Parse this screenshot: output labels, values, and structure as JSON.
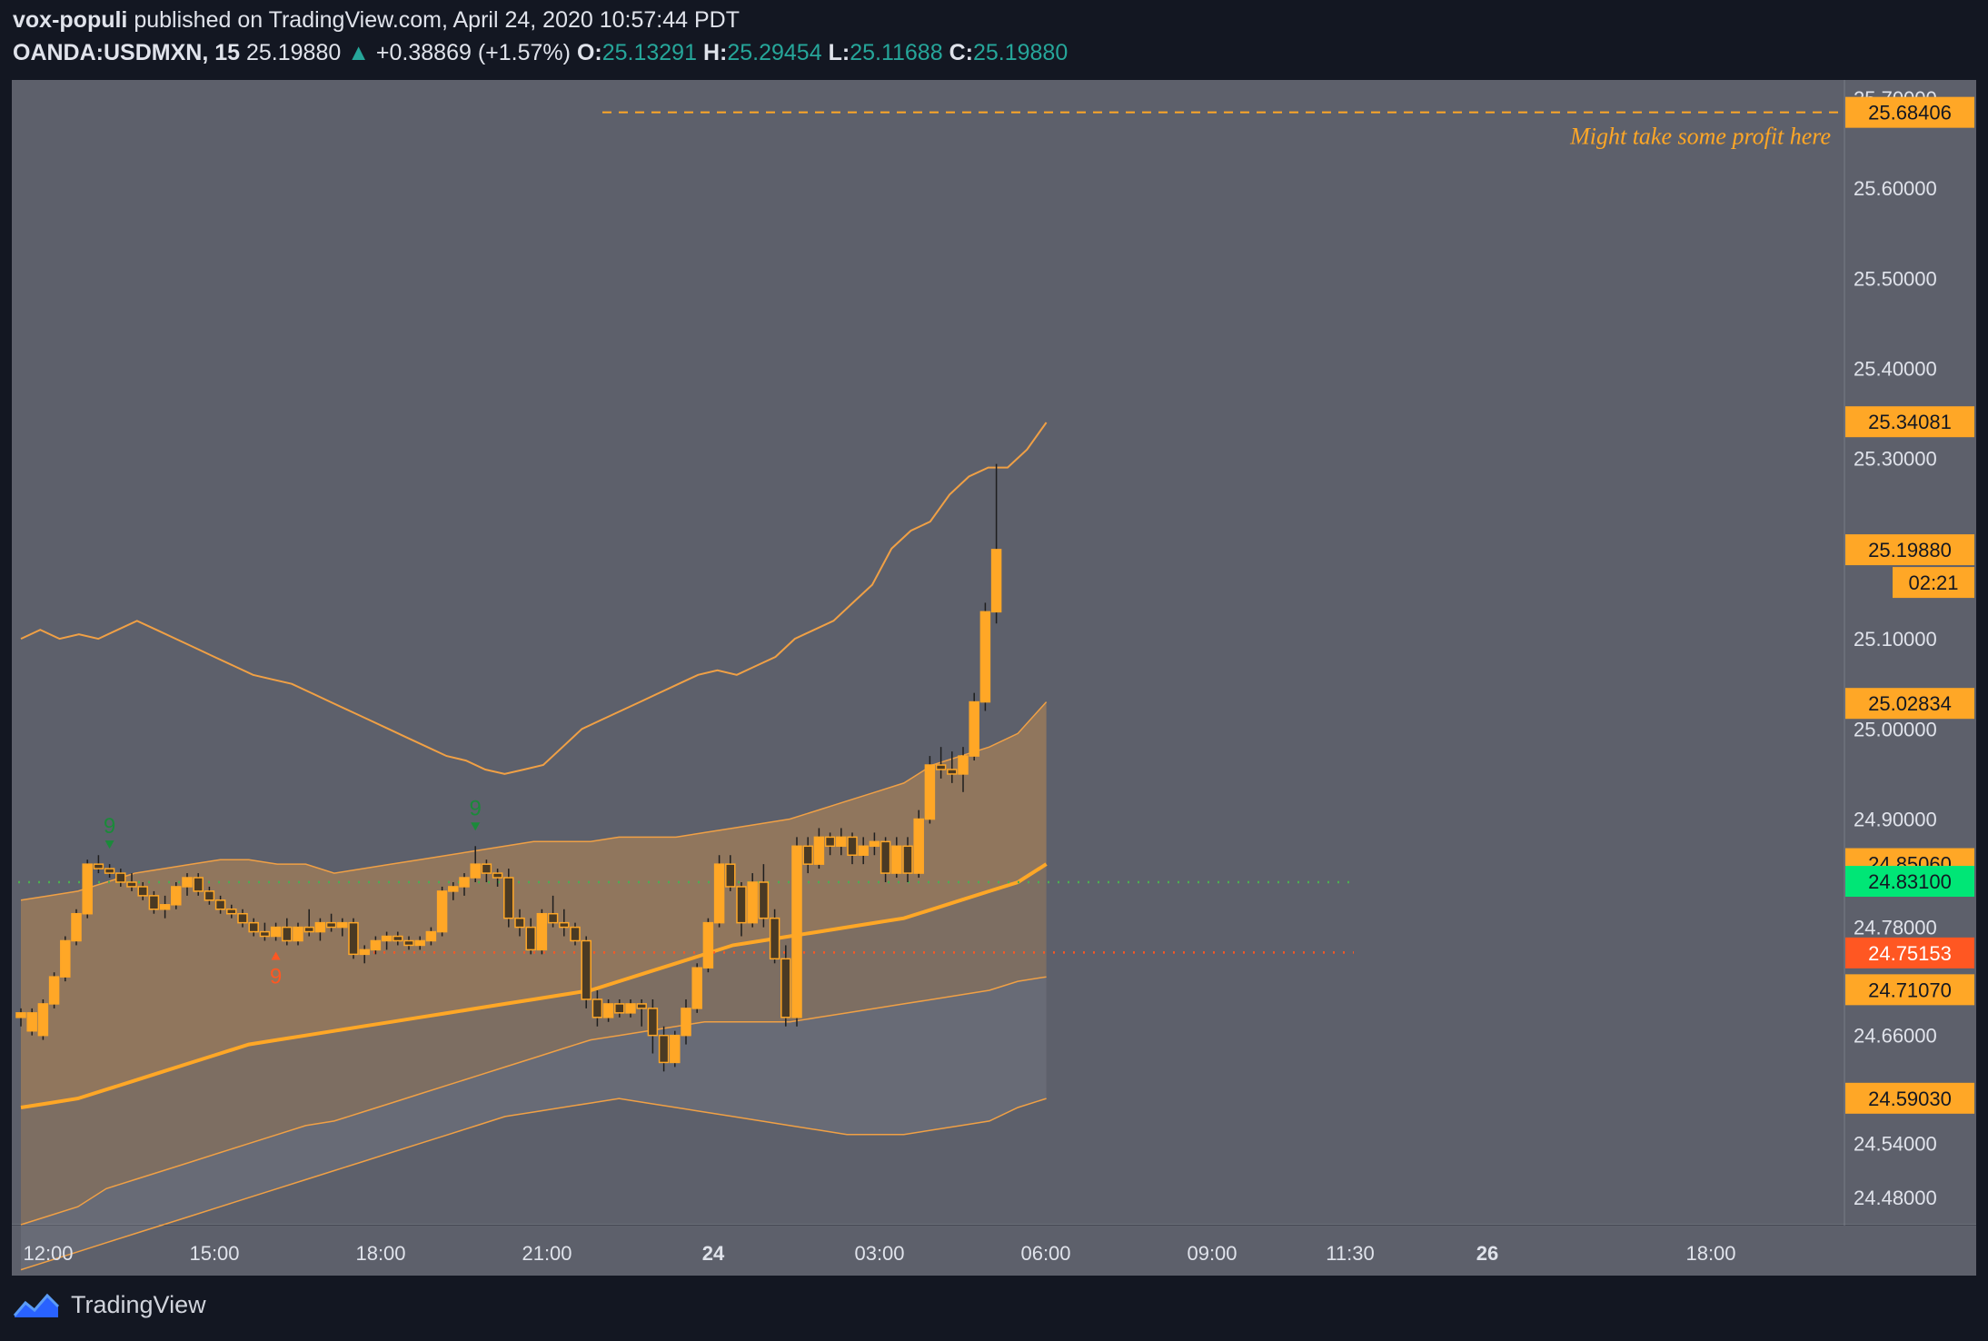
{
  "header": {
    "author": "vox-populi",
    "published": "published on TradingView.com, April 24, 2020 10:57:44 PDT",
    "symbol": "OANDA:USDMXN, 15",
    "last": "25.19880",
    "change": "+0.38869 (+1.57%)",
    "o_label": "O:",
    "o": "25.13291",
    "h_label": "H:",
    "h": "25.29454",
    "l_label": "L:",
    "l": "25.11688",
    "c_label": "C:",
    "c": "25.19880"
  },
  "footer": {
    "brand": "TradingView"
  },
  "colors": {
    "background": "#131722",
    "plot": "#5d606b",
    "candle": "#ffa726",
    "band": "#f0a045",
    "red": "#ff5722",
    "green": "#00e676"
  },
  "chart_data": {
    "type": "candlestick",
    "interval": "15",
    "ylim": [
      24.45,
      25.72
    ],
    "y_ticks": [
      "25.70000",
      "25.60000",
      "25.50000",
      "25.40000",
      "25.30000",
      "25.10000",
      "25.00000",
      "24.90000",
      "24.78000",
      "24.66000",
      "24.54000",
      "24.48000"
    ],
    "x_ticks": [
      {
        "label": "12:00",
        "bold": false
      },
      {
        "label": "15:00",
        "bold": false
      },
      {
        "label": "18:00",
        "bold": false
      },
      {
        "label": "21:00",
        "bold": false
      },
      {
        "label": "24",
        "bold": true
      },
      {
        "label": "03:00",
        "bold": false
      },
      {
        "label": "06:00",
        "bold": false
      },
      {
        "label": "09:00",
        "bold": false
      },
      {
        "label": "11:30",
        "bold": false
      },
      {
        "label": "26",
        "bold": true
      },
      {
        "label": "18:00",
        "bold": false
      }
    ],
    "price_labels": [
      {
        "text": "25.68406",
        "value": 25.68406,
        "kind": "orange"
      },
      {
        "text": "25.34081",
        "value": 25.34081,
        "kind": "orange"
      },
      {
        "text": "25.19880",
        "value": 25.1988,
        "kind": "orange"
      },
      {
        "text": "02:21",
        "value": 25.1988,
        "kind": "timer"
      },
      {
        "text": "25.02834",
        "value": 25.02834,
        "kind": "orange"
      },
      {
        "text": "24.85060",
        "value": 24.8506,
        "kind": "orange"
      },
      {
        "text": "24.83100",
        "value": 24.831,
        "kind": "green"
      },
      {
        "text": "24.75153",
        "value": 24.75153,
        "kind": "red"
      },
      {
        "text": "24.71070",
        "value": 24.7107,
        "kind": "orange"
      },
      {
        "text": "24.59030",
        "value": 24.5903,
        "kind": "orange"
      }
    ],
    "annotation": {
      "text": "Might take some profit here",
      "value": 25.68406
    },
    "levels": {
      "green_dotted": 24.83,
      "red_dotted": 24.752
    },
    "markers": [
      {
        "text": "9",
        "index": 8,
        "position": "above",
        "color": "green"
      },
      {
        "text": "9",
        "index": 41,
        "position": "above",
        "color": "green"
      },
      {
        "text": "9",
        "index": 23,
        "position": "below",
        "color": "red"
      }
    ],
    "candles": [
      [
        24.68,
        24.69,
        24.67,
        24.685
      ],
      [
        24.665,
        24.69,
        24.66,
        24.685
      ],
      [
        24.66,
        24.7,
        24.655,
        24.695
      ],
      [
        24.695,
        24.73,
        24.69,
        24.725
      ],
      [
        24.725,
        24.77,
        24.72,
        24.765
      ],
      [
        24.765,
        24.8,
        24.76,
        24.795
      ],
      [
        24.795,
        24.855,
        24.79,
        24.85
      ],
      [
        24.85,
        24.86,
        24.84,
        24.845
      ],
      [
        24.845,
        24.85,
        24.835,
        24.84
      ],
      [
        24.84,
        24.845,
        24.825,
        24.83
      ],
      [
        24.83,
        24.84,
        24.82,
        24.825
      ],
      [
        24.825,
        24.83,
        24.81,
        24.815
      ],
      [
        24.815,
        24.82,
        24.795,
        24.8
      ],
      [
        24.8,
        24.815,
        24.79,
        24.805
      ],
      [
        24.805,
        24.83,
        24.8,
        24.825
      ],
      [
        24.825,
        24.84,
        24.815,
        24.835
      ],
      [
        24.835,
        24.84,
        24.815,
        24.82
      ],
      [
        24.82,
        24.825,
        24.805,
        24.81
      ],
      [
        24.81,
        24.815,
        24.795,
        24.8
      ],
      [
        24.8,
        24.805,
        24.79,
        24.795
      ],
      [
        24.795,
        24.8,
        24.78,
        24.785
      ],
      [
        24.785,
        24.79,
        24.77,
        24.775
      ],
      [
        24.775,
        24.785,
        24.765,
        24.77
      ],
      [
        24.77,
        24.785,
        24.765,
        24.78
      ],
      [
        24.78,
        24.79,
        24.76,
        24.765
      ],
      [
        24.765,
        24.785,
        24.76,
        24.78
      ],
      [
        24.78,
        24.8,
        24.77,
        24.775
      ],
      [
        24.775,
        24.79,
        24.765,
        24.785
      ],
      [
        24.785,
        24.795,
        24.775,
        24.78
      ],
      [
        24.78,
        24.79,
        24.77,
        24.785
      ],
      [
        24.785,
        24.79,
        24.745,
        24.75
      ],
      [
        24.75,
        24.76,
        24.74,
        24.755
      ],
      [
        24.755,
        24.77,
        24.75,
        24.765
      ],
      [
        24.765,
        24.775,
        24.755,
        24.77
      ],
      [
        24.77,
        24.775,
        24.76,
        24.765
      ],
      [
        24.765,
        24.77,
        24.755,
        24.76
      ],
      [
        24.76,
        24.77,
        24.755,
        24.765
      ],
      [
        24.765,
        24.78,
        24.76,
        24.775
      ],
      [
        24.775,
        24.825,
        24.77,
        24.82
      ],
      [
        24.82,
        24.83,
        24.81,
        24.825
      ],
      [
        24.825,
        24.84,
        24.815,
        24.835
      ],
      [
        24.835,
        24.87,
        24.83,
        24.85
      ],
      [
        24.85,
        24.855,
        24.83,
        24.84
      ],
      [
        24.84,
        24.845,
        24.825,
        24.835
      ],
      [
        24.835,
        24.845,
        24.78,
        24.79
      ],
      [
        24.79,
        24.8,
        24.77,
        24.78
      ],
      [
        24.78,
        24.79,
        24.75,
        24.755
      ],
      [
        24.755,
        24.8,
        24.75,
        24.795
      ],
      [
        24.795,
        24.815,
        24.78,
        24.785
      ],
      [
        24.785,
        24.8,
        24.77,
        24.78
      ],
      [
        24.78,
        24.785,
        24.76,
        24.765
      ],
      [
        24.765,
        24.77,
        24.69,
        24.7
      ],
      [
        24.7,
        24.71,
        24.67,
        24.68
      ],
      [
        24.68,
        24.7,
        24.675,
        24.695
      ],
      [
        24.695,
        24.7,
        24.68,
        24.685
      ],
      [
        24.685,
        24.7,
        24.68,
        24.695
      ],
      [
        24.695,
        24.7,
        24.67,
        24.69
      ],
      [
        24.69,
        24.7,
        24.64,
        24.66
      ],
      [
        24.66,
        24.67,
        24.62,
        24.63
      ],
      [
        24.63,
        24.665,
        24.625,
        24.66
      ],
      [
        24.66,
        24.7,
        24.65,
        24.69
      ],
      [
        24.69,
        24.74,
        24.685,
        24.735
      ],
      [
        24.735,
        24.79,
        24.73,
        24.785
      ],
      [
        24.785,
        24.86,
        24.78,
        24.85
      ],
      [
        24.85,
        24.86,
        24.82,
        24.825
      ],
      [
        24.825,
        24.83,
        24.77,
        24.785
      ],
      [
        24.785,
        24.84,
        24.78,
        24.83
      ],
      [
        24.83,
        24.85,
        24.78,
        24.79
      ],
      [
        24.79,
        24.8,
        24.74,
        24.745
      ],
      [
        24.745,
        24.76,
        24.67,
        24.68
      ],
      [
        24.68,
        24.88,
        24.67,
        24.87
      ],
      [
        24.87,
        24.88,
        24.84,
        24.85
      ],
      [
        24.85,
        24.89,
        24.845,
        24.88
      ],
      [
        24.88,
        24.885,
        24.86,
        24.87
      ],
      [
        24.87,
        24.89,
        24.86,
        24.88
      ],
      [
        24.88,
        24.885,
        24.85,
        24.86
      ],
      [
        24.86,
        24.88,
        24.85,
        24.87
      ],
      [
        24.87,
        24.885,
        24.86,
        24.875
      ],
      [
        24.875,
        24.88,
        24.83,
        24.84
      ],
      [
        24.84,
        24.88,
        24.835,
        24.87
      ],
      [
        24.87,
        24.88,
        24.83,
        24.84
      ],
      [
        24.84,
        24.91,
        24.835,
        24.9
      ],
      [
        24.9,
        24.97,
        24.895,
        24.96
      ],
      [
        24.96,
        24.98,
        24.945,
        24.955
      ],
      [
        24.955,
        24.975,
        24.94,
        24.95
      ],
      [
        24.95,
        24.98,
        24.93,
        24.97
      ],
      [
        24.97,
        25.04,
        24.965,
        25.03
      ],
      [
        25.03,
        25.14,
        25.02,
        25.13
      ],
      [
        25.13,
        25.294,
        25.117,
        25.199
      ]
    ],
    "band_upper_outer": [
      25.1,
      25.11,
      25.1,
      25.105,
      25.1,
      25.11,
      25.12,
      25.11,
      25.1,
      25.09,
      25.08,
      25.07,
      25.06,
      25.055,
      25.05,
      25.04,
      25.03,
      25.02,
      25.01,
      25.0,
      24.99,
      24.98,
      24.97,
      24.965,
      24.955,
      24.95,
      24.955,
      24.96,
      24.98,
      25.0,
      25.01,
      25.02,
      25.03,
      25.04,
      25.05,
      25.06,
      25.065,
      25.06,
      25.07,
      25.08,
      25.1,
      25.11,
      25.12,
      25.14,
      25.16,
      25.2,
      25.22,
      25.23,
      25.26,
      25.28,
      25.29,
      25.29,
      25.31,
      25.34
    ],
    "band_upper_inner": [
      24.81,
      24.815,
      24.82,
      24.83,
      24.84,
      24.845,
      24.85,
      24.855,
      24.855,
      24.85,
      24.85,
      24.84,
      24.845,
      24.85,
      24.855,
      24.86,
      24.865,
      24.87,
      24.875,
      24.875,
      24.875,
      24.88,
      24.88,
      24.88,
      24.885,
      24.89,
      24.895,
      24.9,
      24.91,
      24.92,
      24.93,
      24.94,
      24.96,
      24.97,
      24.98,
      24.995,
      25.03
    ],
    "band_mid": [
      24.58,
      24.585,
      24.59,
      24.6,
      24.61,
      24.62,
      24.63,
      24.64,
      24.65,
      24.655,
      24.66,
      24.665,
      24.67,
      24.675,
      24.68,
      24.685,
      24.69,
      24.695,
      24.7,
      24.705,
      24.71,
      24.72,
      24.73,
      24.74,
      24.75,
      24.76,
      24.765,
      24.77,
      24.775,
      24.78,
      24.785,
      24.79,
      24.8,
      24.81,
      24.82,
      24.83,
      24.85
    ],
    "band_lower_inner": [
      24.45,
      24.46,
      24.47,
      24.49,
      24.5,
      24.51,
      24.52,
      24.53,
      24.54,
      24.55,
      24.56,
      24.565,
      24.575,
      24.585,
      24.595,
      24.605,
      24.615,
      24.625,
      24.635,
      24.645,
      24.655,
      24.66,
      24.665,
      24.67,
      24.675,
      24.675,
      24.675,
      24.675,
      24.68,
      24.685,
      24.69,
      24.695,
      24.7,
      24.705,
      24.71,
      24.72,
      24.725
    ],
    "band_lower_outer": [
      24.4,
      24.41,
      24.42,
      24.43,
      24.44,
      24.45,
      24.46,
      24.47,
      24.48,
      24.49,
      24.5,
      24.51,
      24.52,
      24.53,
      24.54,
      24.55,
      24.56,
      24.57,
      24.575,
      24.58,
      24.585,
      24.59,
      24.585,
      24.58,
      24.575,
      24.57,
      24.565,
      24.56,
      24.555,
      24.55,
      24.55,
      24.55,
      24.555,
      24.56,
      24.565,
      24.58,
      24.59
    ]
  }
}
